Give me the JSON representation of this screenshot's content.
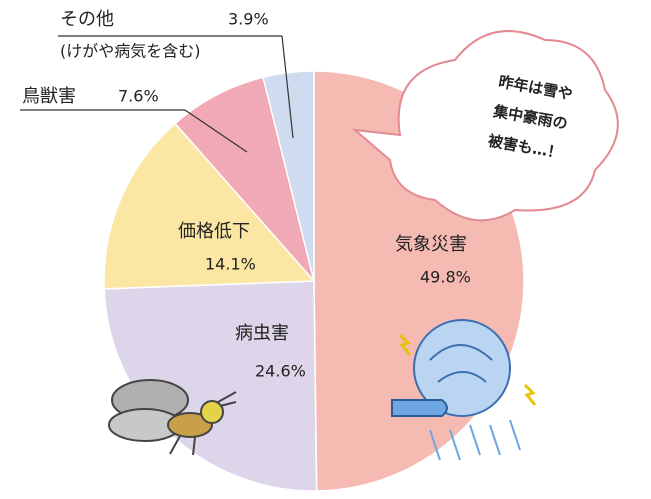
{
  "chart_data": {
    "type": "pie",
    "categories": [
      "気象災害",
      "病虫害",
      "価格低下",
      "鳥獣害",
      "その他"
    ],
    "values": [
      49.8,
      24.6,
      14.1,
      7.6,
      3.9
    ],
    "value_labels": [
      "49.8%",
      "24.6%",
      "14.1%",
      "7.6%",
      "3.9%"
    ],
    "colors": [
      "#f5bab2",
      "#ddd6ea",
      "#fbe6a4",
      "#f1a9b6",
      "#cfdcf0"
    ],
    "annotations": {
      "other_note": "(けがや病気を含む)",
      "bubble": [
        "昨年は雪や",
        "集中豪雨の",
        "被害も…！"
      ]
    }
  }
}
